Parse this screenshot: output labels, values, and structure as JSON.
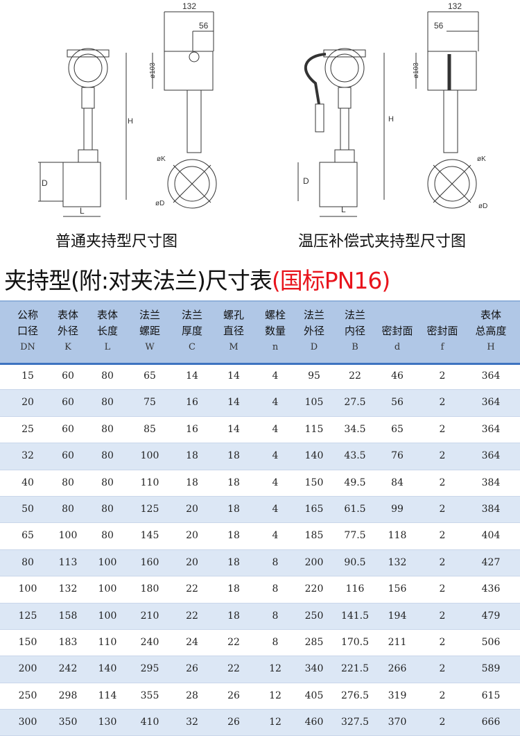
{
  "drawings": {
    "left": {
      "caption": "普通夹持型尺寸图",
      "dim_width": "132",
      "dim_offset": "56",
      "dim_head": "ø103",
      "dim_height": "H",
      "dim_d": "D",
      "dim_l": "L",
      "dim_k": "øK",
      "dim_flange": "øD"
    },
    "right": {
      "caption": "温压补偿式夹持型尺寸图",
      "dim_width": "132",
      "dim_offset": "56",
      "dim_head": "ø103",
      "dim_height": "H",
      "dim_d": "D",
      "dim_l": "L",
      "dim_k": "øK",
      "dim_flange": "øD"
    }
  },
  "table": {
    "title": "夹持型(附:对夹法兰)尺寸表",
    "title_highlight": "(国标PN16)",
    "highlight_color": "#e8141c",
    "columns": [
      {
        "l1": "公称",
        "l2": "口径",
        "code": "DN"
      },
      {
        "l1": "表体",
        "l2": "外径",
        "code": "K"
      },
      {
        "l1": "表体",
        "l2": "长度",
        "code": "L"
      },
      {
        "l1": "法兰",
        "l2": "螺距",
        "code": "W"
      },
      {
        "l1": "法兰",
        "l2": "厚度",
        "code": "C"
      },
      {
        "l1": "螺孔",
        "l2": "直径",
        "code": "M"
      },
      {
        "l1": "螺栓",
        "l2": "数量",
        "code": "n"
      },
      {
        "l1": "法兰",
        "l2": "外径",
        "code": "D"
      },
      {
        "l1": "法兰",
        "l2": "内径",
        "code": "B"
      },
      {
        "l1": "",
        "l2": "密封面",
        "code": "d"
      },
      {
        "l1": "",
        "l2": "密封面",
        "code": "f"
      },
      {
        "l1": "表体",
        "l2": "总高度",
        "code": "H"
      }
    ],
    "rows": [
      [
        "15",
        "60",
        "80",
        "65",
        "14",
        "14",
        "4",
        "95",
        "22",
        "46",
        "2",
        "364"
      ],
      [
        "20",
        "60",
        "80",
        "75",
        "16",
        "14",
        "4",
        "105",
        "27.5",
        "56",
        "2",
        "364"
      ],
      [
        "25",
        "60",
        "80",
        "85",
        "16",
        "14",
        "4",
        "115",
        "34.5",
        "65",
        "2",
        "364"
      ],
      [
        "32",
        "60",
        "80",
        "100",
        "18",
        "18",
        "4",
        "140",
        "43.5",
        "76",
        "2",
        "364"
      ],
      [
        "40",
        "80",
        "80",
        "110",
        "18",
        "18",
        "4",
        "150",
        "49.5",
        "84",
        "2",
        "384"
      ],
      [
        "50",
        "80",
        "80",
        "125",
        "20",
        "18",
        "4",
        "165",
        "61.5",
        "99",
        "2",
        "384"
      ],
      [
        "65",
        "100",
        "80",
        "145",
        "20",
        "18",
        "4",
        "185",
        "77.5",
        "118",
        "2",
        "404"
      ],
      [
        "80",
        "113",
        "100",
        "160",
        "20",
        "18",
        "8",
        "200",
        "90.5",
        "132",
        "2",
        "427"
      ],
      [
        "100",
        "132",
        "100",
        "180",
        "22",
        "18",
        "8",
        "220",
        "116",
        "156",
        "2",
        "436"
      ],
      [
        "125",
        "158",
        "100",
        "210",
        "22",
        "18",
        "8",
        "250",
        "141.5",
        "194",
        "2",
        "479"
      ],
      [
        "150",
        "183",
        "110",
        "240",
        "24",
        "22",
        "8",
        "285",
        "170.5",
        "211",
        "2",
        "506"
      ],
      [
        "200",
        "242",
        "140",
        "295",
        "26",
        "22",
        "12",
        "340",
        "221.5",
        "266",
        "2",
        "589"
      ],
      [
        "250",
        "298",
        "114",
        "355",
        "28",
        "26",
        "12",
        "405",
        "276.5",
        "319",
        "2",
        "615"
      ],
      [
        "300",
        "350",
        "130",
        "410",
        "32",
        "26",
        "12",
        "460",
        "327.5",
        "370",
        "2",
        "666"
      ]
    ]
  }
}
